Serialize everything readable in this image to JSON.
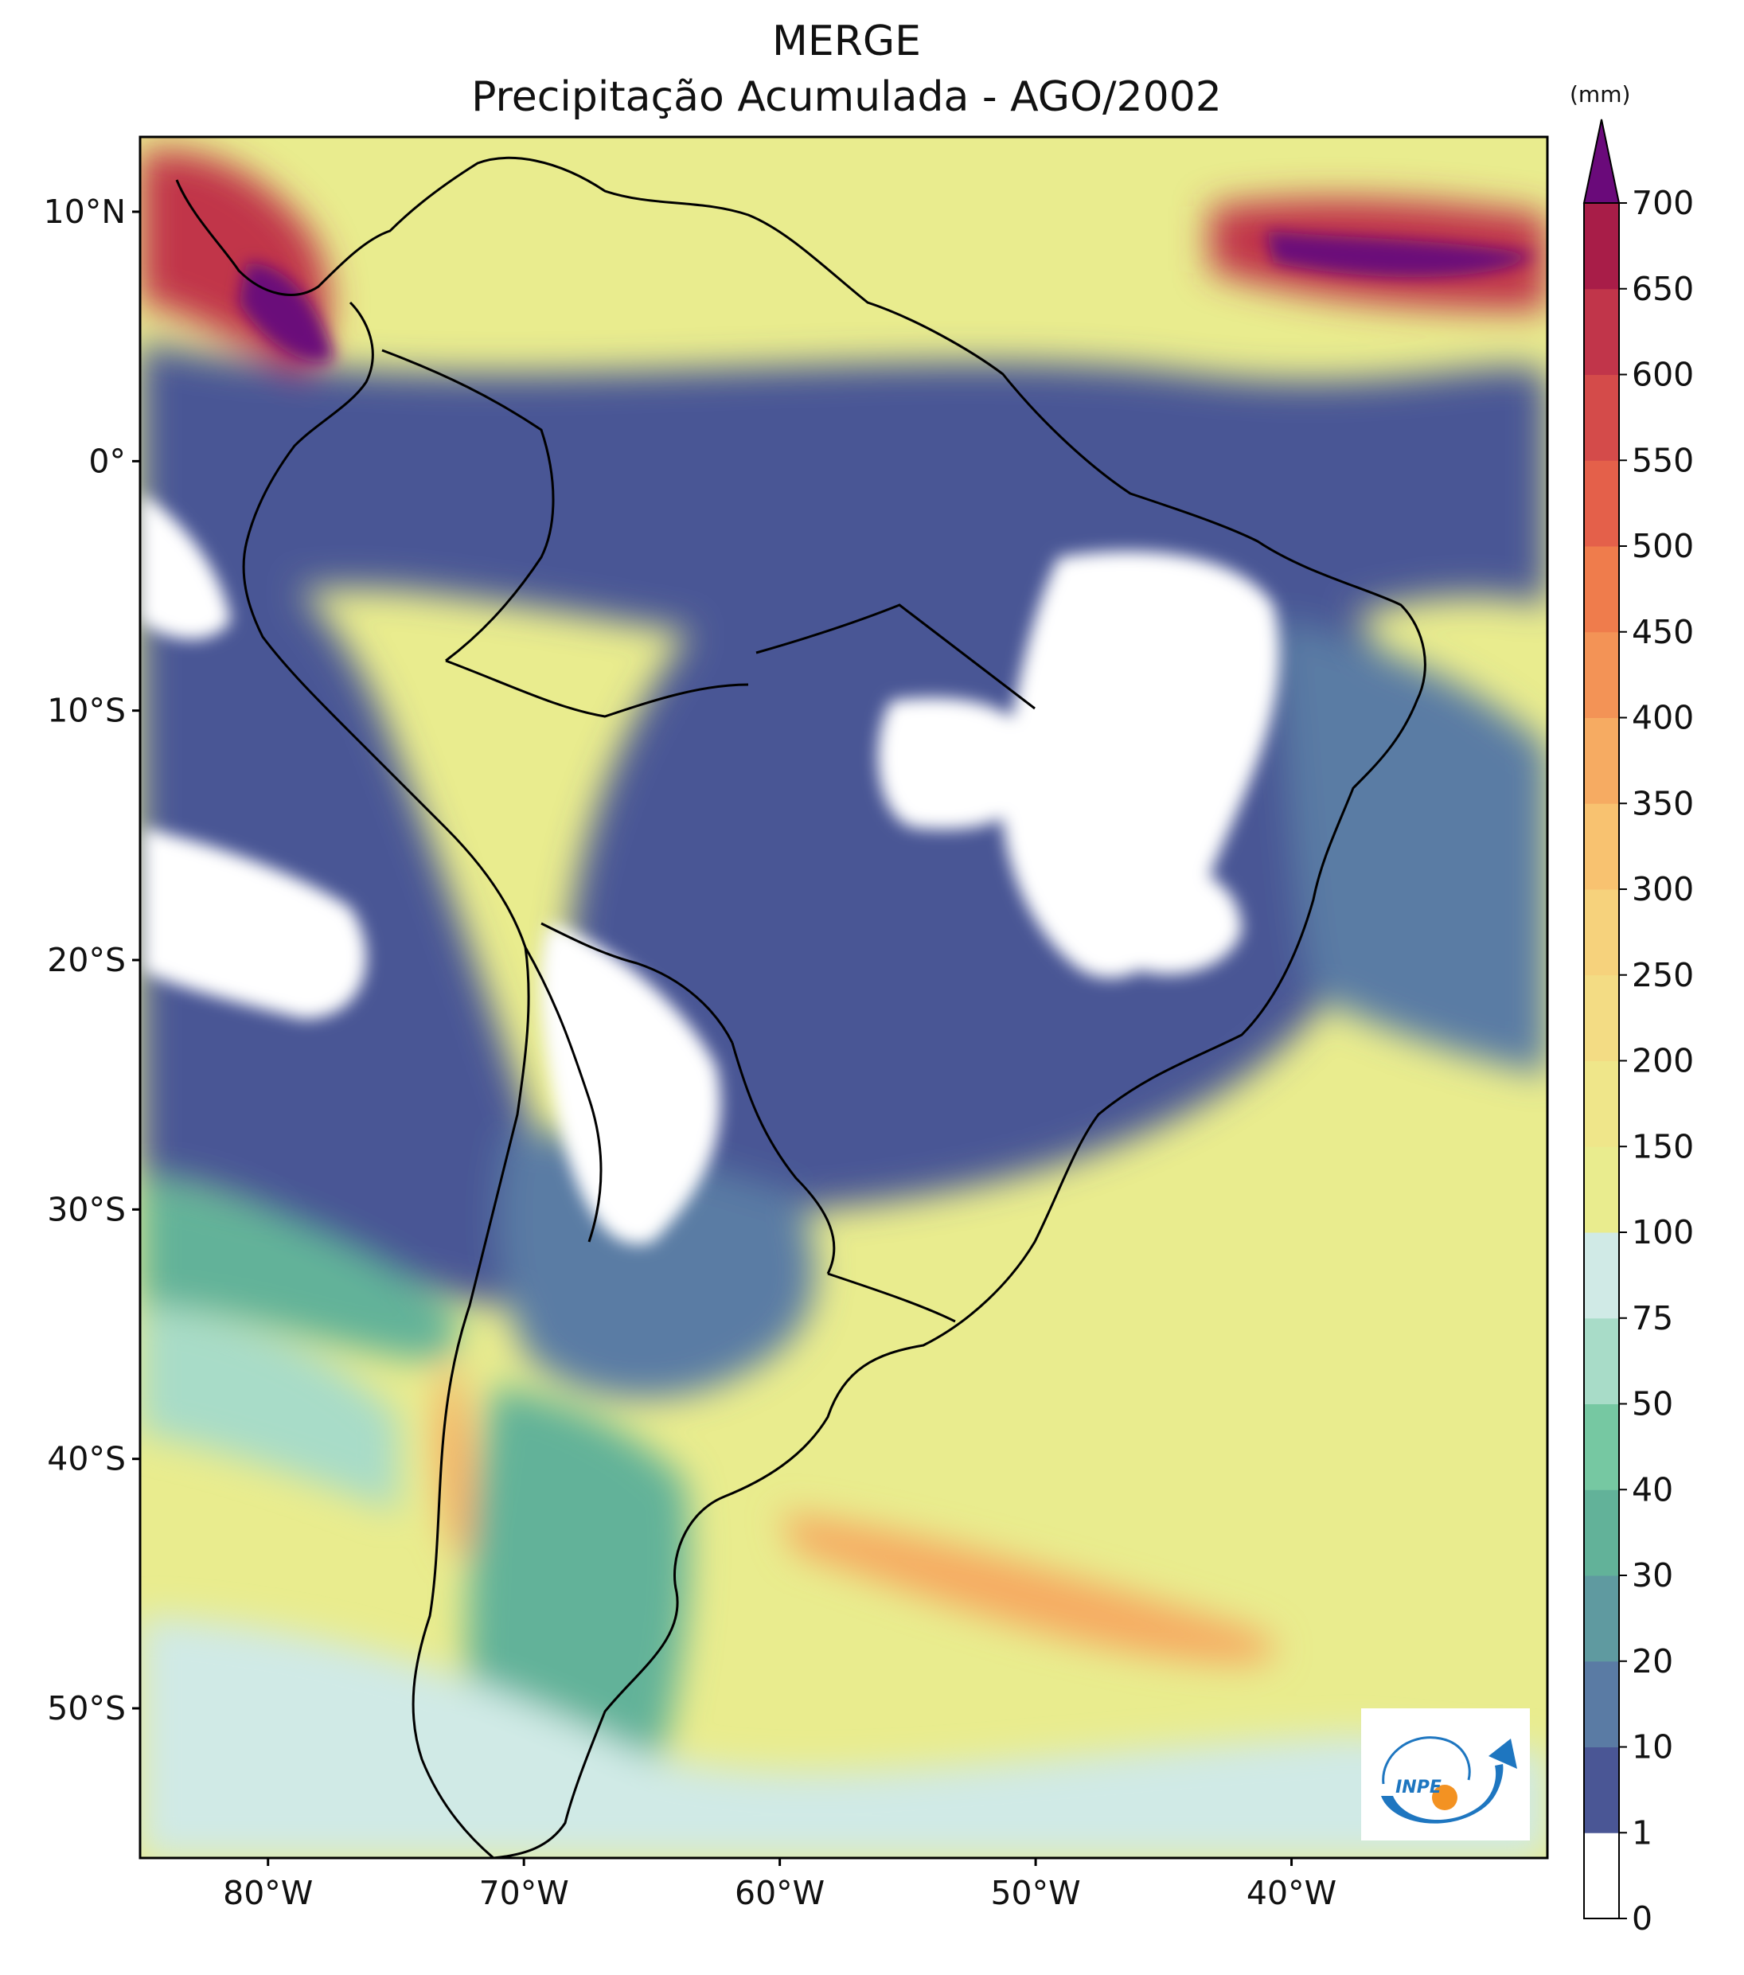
{
  "title": "MERGE",
  "subtitle": "Precipitação Acumulada - AGO/2002",
  "unit_label": "(mm)",
  "logo_text": "INPE",
  "map": {
    "region": "South America",
    "lon_range": [
      -85,
      -30
    ],
    "lat_range": [
      -56,
      13
    ],
    "variable": "accumulated precipitation",
    "lat_ticks": [
      {
        "value": 10,
        "label": "10°N"
      },
      {
        "value": 0,
        "label": "0°"
      },
      {
        "value": -10,
        "label": "10°S"
      },
      {
        "value": -20,
        "label": "20°S"
      },
      {
        "value": -30,
        "label": "30°S"
      },
      {
        "value": -40,
        "label": "40°S"
      },
      {
        "value": -50,
        "label": "50°S"
      }
    ],
    "lon_ticks": [
      {
        "value": -80,
        "label": "80°W"
      },
      {
        "value": -70,
        "label": "70°W"
      },
      {
        "value": -60,
        "label": "60°W"
      },
      {
        "value": -50,
        "label": "50°W"
      },
      {
        "value": -40,
        "label": "40°W"
      }
    ]
  },
  "colorbar": {
    "extend": "max",
    "over_color": "#6a0a7a",
    "levels": [
      {
        "label": "0",
        "color": "#ffffff"
      },
      {
        "label": "1",
        "color": "#4a5695"
      },
      {
        "label": "10",
        "color": "#5a7ba4"
      },
      {
        "label": "20",
        "color": "#5f9aa0"
      },
      {
        "label": "30",
        "color": "#62b299"
      },
      {
        "label": "40",
        "color": "#76c8a2"
      },
      {
        "label": "50",
        "color": "#a8dcc8"
      },
      {
        "label": "75",
        "color": "#d0eae6"
      },
      {
        "label": "100",
        "color": "#e9ec8e"
      },
      {
        "label": "150",
        "color": "#efe68a"
      },
      {
        "label": "200",
        "color": "#f3dc84"
      },
      {
        "label": "250",
        "color": "#f6d27c"
      },
      {
        "label": "300",
        "color": "#f8c270"
      },
      {
        "label": "350",
        "color": "#f6ab62"
      },
      {
        "label": "400",
        "color": "#f39356"
      },
      {
        "label": "450",
        "color": "#ef7c4c"
      },
      {
        "label": "500",
        "color": "#e4604a"
      },
      {
        "label": "550",
        "color": "#d44b4a"
      },
      {
        "label": "600",
        "color": "#c1354a"
      },
      {
        "label": "650",
        "color": "#a81d48"
      },
      {
        "label": "700",
        "color": null
      }
    ]
  },
  "colors": {
    "dry": "#ffffff",
    "very_low": "#4a5695",
    "low": "#5a7ba4",
    "moderate": "#62b299",
    "light_teal": "#a8dcc8",
    "pale": "#d0eae6",
    "yellow": "#e9ec8e",
    "orange": "#f6ab62",
    "red": "#c1354a",
    "purple": "#6a0a7a",
    "logo_blue": "#1e76c0",
    "logo_orange": "#f39222"
  }
}
